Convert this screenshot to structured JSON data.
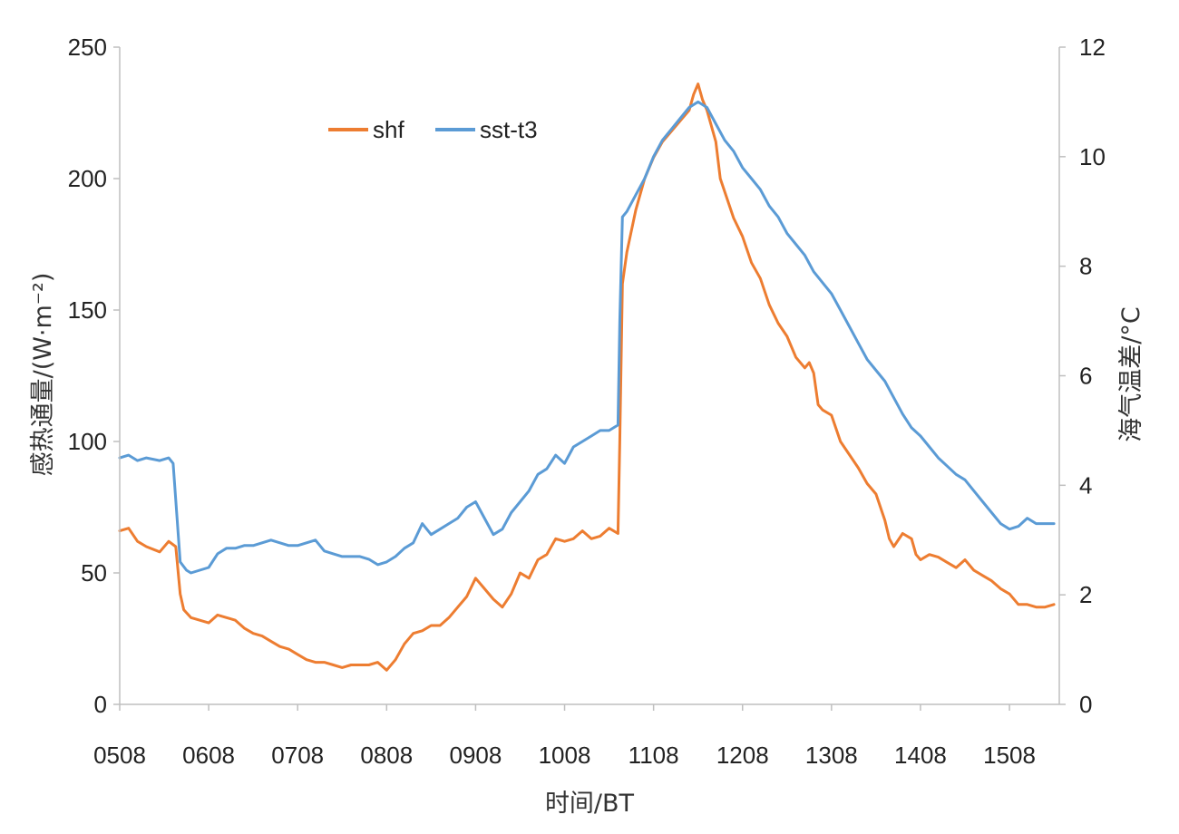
{
  "chart_data": {
    "type": "line",
    "title": "",
    "xlabel": "时间/BT",
    "ylabel_left": "感热通量/(W·m⁻²)",
    "ylabel_right": "海气温差/°C",
    "x_ticks": [
      "0508",
      "0608",
      "0708",
      "0808",
      "0908",
      "1008",
      "1108",
      "1208",
      "1308",
      "1408",
      "1508"
    ],
    "x_range": [
      0,
      10.56
    ],
    "y_left_ticks": [
      "0",
      "50",
      "100",
      "150",
      "200",
      "250"
    ],
    "y_left_range": [
      0,
      250
    ],
    "y_right_ticks": [
      "0",
      "2",
      "4",
      "6",
      "8",
      "10",
      "12"
    ],
    "y_right_range": [
      0,
      12
    ],
    "legend": {
      "position": "top-left"
    },
    "grid": false,
    "series": [
      {
        "name": "shf",
        "axis": "left",
        "color": "#ED7D31",
        "points": [
          [
            0.0,
            66
          ],
          [
            0.1,
            67
          ],
          [
            0.2,
            62
          ],
          [
            0.3,
            60
          ],
          [
            0.45,
            58
          ],
          [
            0.55,
            62
          ],
          [
            0.63,
            60
          ],
          [
            0.68,
            42
          ],
          [
            0.72,
            36
          ],
          [
            0.8,
            33
          ],
          [
            0.9,
            32
          ],
          [
            1.0,
            31
          ],
          [
            1.1,
            34
          ],
          [
            1.2,
            33
          ],
          [
            1.3,
            32
          ],
          [
            1.4,
            29
          ],
          [
            1.5,
            27
          ],
          [
            1.6,
            26
          ],
          [
            1.7,
            24
          ],
          [
            1.8,
            22
          ],
          [
            1.9,
            21
          ],
          [
            2.0,
            19
          ],
          [
            2.1,
            17
          ],
          [
            2.2,
            16
          ],
          [
            2.3,
            16
          ],
          [
            2.4,
            15
          ],
          [
            2.5,
            14
          ],
          [
            2.6,
            15
          ],
          [
            2.7,
            15
          ],
          [
            2.8,
            15
          ],
          [
            2.9,
            16
          ],
          [
            3.0,
            13
          ],
          [
            3.1,
            17
          ],
          [
            3.2,
            23
          ],
          [
            3.3,
            27
          ],
          [
            3.4,
            28
          ],
          [
            3.5,
            30
          ],
          [
            3.6,
            30
          ],
          [
            3.7,
            33
          ],
          [
            3.8,
            37
          ],
          [
            3.9,
            41
          ],
          [
            4.0,
            48
          ],
          [
            4.1,
            44
          ],
          [
            4.2,
            40
          ],
          [
            4.3,
            37
          ],
          [
            4.4,
            42
          ],
          [
            4.5,
            50
          ],
          [
            4.6,
            48
          ],
          [
            4.7,
            55
          ],
          [
            4.8,
            57
          ],
          [
            4.9,
            63
          ],
          [
            5.0,
            62
          ],
          [
            5.1,
            63
          ],
          [
            5.2,
            66
          ],
          [
            5.3,
            63
          ],
          [
            5.4,
            64
          ],
          [
            5.5,
            67
          ],
          [
            5.6,
            65
          ],
          [
            5.62,
            100
          ],
          [
            5.65,
            160
          ],
          [
            5.7,
            172
          ],
          [
            5.75,
            180
          ],
          [
            5.8,
            188
          ],
          [
            5.9,
            200
          ],
          [
            6.0,
            208
          ],
          [
            6.1,
            214
          ],
          [
            6.2,
            218
          ],
          [
            6.3,
            222
          ],
          [
            6.4,
            226
          ],
          [
            6.45,
            232
          ],
          [
            6.5,
            236
          ],
          [
            6.55,
            230
          ],
          [
            6.6,
            226
          ],
          [
            6.7,
            214
          ],
          [
            6.75,
            200
          ],
          [
            6.8,
            195
          ],
          [
            6.9,
            185
          ],
          [
            7.0,
            178
          ],
          [
            7.1,
            168
          ],
          [
            7.2,
            162
          ],
          [
            7.3,
            152
          ],
          [
            7.4,
            145
          ],
          [
            7.5,
            140
          ],
          [
            7.6,
            132
          ],
          [
            7.7,
            128
          ],
          [
            7.75,
            130
          ],
          [
            7.8,
            126
          ],
          [
            7.85,
            114
          ],
          [
            7.9,
            112
          ],
          [
            8.0,
            110
          ],
          [
            8.1,
            100
          ],
          [
            8.2,
            95
          ],
          [
            8.3,
            90
          ],
          [
            8.4,
            84
          ],
          [
            8.5,
            80
          ],
          [
            8.6,
            70
          ],
          [
            8.65,
            63
          ],
          [
            8.7,
            60
          ],
          [
            8.8,
            65
          ],
          [
            8.9,
            63
          ],
          [
            8.95,
            57
          ],
          [
            9.0,
            55
          ],
          [
            9.1,
            57
          ],
          [
            9.2,
            56
          ],
          [
            9.3,
            54
          ],
          [
            9.4,
            52
          ],
          [
            9.5,
            55
          ],
          [
            9.6,
            51
          ],
          [
            9.7,
            49
          ],
          [
            9.8,
            47
          ],
          [
            9.9,
            44
          ],
          [
            10.0,
            42
          ],
          [
            10.1,
            38
          ],
          [
            10.2,
            38
          ],
          [
            10.3,
            37
          ],
          [
            10.4,
            37
          ],
          [
            10.5,
            38
          ]
        ]
      },
      {
        "name": "sst-t3",
        "axis": "right",
        "color": "#5B9BD5",
        "points": [
          [
            0.0,
            4.5
          ],
          [
            0.1,
            4.55
          ],
          [
            0.2,
            4.45
          ],
          [
            0.3,
            4.5
          ],
          [
            0.45,
            4.45
          ],
          [
            0.55,
            4.5
          ],
          [
            0.6,
            4.4
          ],
          [
            0.68,
            2.6
          ],
          [
            0.75,
            2.45
          ],
          [
            0.8,
            2.4
          ],
          [
            0.9,
            2.45
          ],
          [
            1.0,
            2.5
          ],
          [
            1.1,
            2.75
          ],
          [
            1.2,
            2.85
          ],
          [
            1.3,
            2.85
          ],
          [
            1.4,
            2.9
          ],
          [
            1.5,
            2.9
          ],
          [
            1.6,
            2.95
          ],
          [
            1.7,
            3.0
          ],
          [
            1.8,
            2.95
          ],
          [
            1.9,
            2.9
          ],
          [
            2.0,
            2.9
          ],
          [
            2.1,
            2.95
          ],
          [
            2.2,
            3.0
          ],
          [
            2.3,
            2.8
          ],
          [
            2.4,
            2.75
          ],
          [
            2.5,
            2.7
          ],
          [
            2.6,
            2.7
          ],
          [
            2.7,
            2.7
          ],
          [
            2.8,
            2.65
          ],
          [
            2.9,
            2.55
          ],
          [
            3.0,
            2.6
          ],
          [
            3.1,
            2.7
          ],
          [
            3.2,
            2.85
          ],
          [
            3.3,
            2.95
          ],
          [
            3.4,
            3.3
          ],
          [
            3.5,
            3.1
          ],
          [
            3.6,
            3.2
          ],
          [
            3.7,
            3.3
          ],
          [
            3.8,
            3.4
          ],
          [
            3.9,
            3.6
          ],
          [
            4.0,
            3.7
          ],
          [
            4.1,
            3.4
          ],
          [
            4.2,
            3.1
          ],
          [
            4.3,
            3.2
          ],
          [
            4.4,
            3.5
          ],
          [
            4.5,
            3.7
          ],
          [
            4.6,
            3.9
          ],
          [
            4.7,
            4.2
          ],
          [
            4.8,
            4.3
          ],
          [
            4.9,
            4.55
          ],
          [
            5.0,
            4.4
          ],
          [
            5.1,
            4.7
          ],
          [
            5.2,
            4.8
          ],
          [
            5.3,
            4.9
          ],
          [
            5.4,
            5.0
          ],
          [
            5.5,
            5.0
          ],
          [
            5.6,
            5.1
          ],
          [
            5.62,
            7.0
          ],
          [
            5.65,
            8.9
          ],
          [
            5.7,
            9.0
          ],
          [
            5.8,
            9.3
          ],
          [
            5.9,
            9.6
          ],
          [
            6.0,
            10.0
          ],
          [
            6.1,
            10.3
          ],
          [
            6.2,
            10.5
          ],
          [
            6.3,
            10.7
          ],
          [
            6.4,
            10.9
          ],
          [
            6.5,
            11.0
          ],
          [
            6.6,
            10.9
          ],
          [
            6.7,
            10.6
          ],
          [
            6.8,
            10.3
          ],
          [
            6.9,
            10.1
          ],
          [
            7.0,
            9.8
          ],
          [
            7.1,
            9.6
          ],
          [
            7.2,
            9.4
          ],
          [
            7.3,
            9.1
          ],
          [
            7.4,
            8.9
          ],
          [
            7.5,
            8.6
          ],
          [
            7.6,
            8.4
          ],
          [
            7.7,
            8.2
          ],
          [
            7.8,
            7.9
          ],
          [
            7.9,
            7.7
          ],
          [
            8.0,
            7.5
          ],
          [
            8.1,
            7.2
          ],
          [
            8.2,
            6.9
          ],
          [
            8.3,
            6.6
          ],
          [
            8.4,
            6.3
          ],
          [
            8.5,
            6.1
          ],
          [
            8.6,
            5.9
          ],
          [
            8.7,
            5.6
          ],
          [
            8.8,
            5.3
          ],
          [
            8.9,
            5.05
          ],
          [
            9.0,
            4.9
          ],
          [
            9.1,
            4.7
          ],
          [
            9.2,
            4.5
          ],
          [
            9.3,
            4.35
          ],
          [
            9.4,
            4.2
          ],
          [
            9.5,
            4.1
          ],
          [
            9.6,
            3.9
          ],
          [
            9.7,
            3.7
          ],
          [
            9.8,
            3.5
          ],
          [
            9.9,
            3.3
          ],
          [
            10.0,
            3.2
          ],
          [
            10.1,
            3.25
          ],
          [
            10.2,
            3.4
          ],
          [
            10.3,
            3.3
          ],
          [
            10.4,
            3.3
          ],
          [
            10.5,
            3.3
          ]
        ]
      }
    ]
  }
}
